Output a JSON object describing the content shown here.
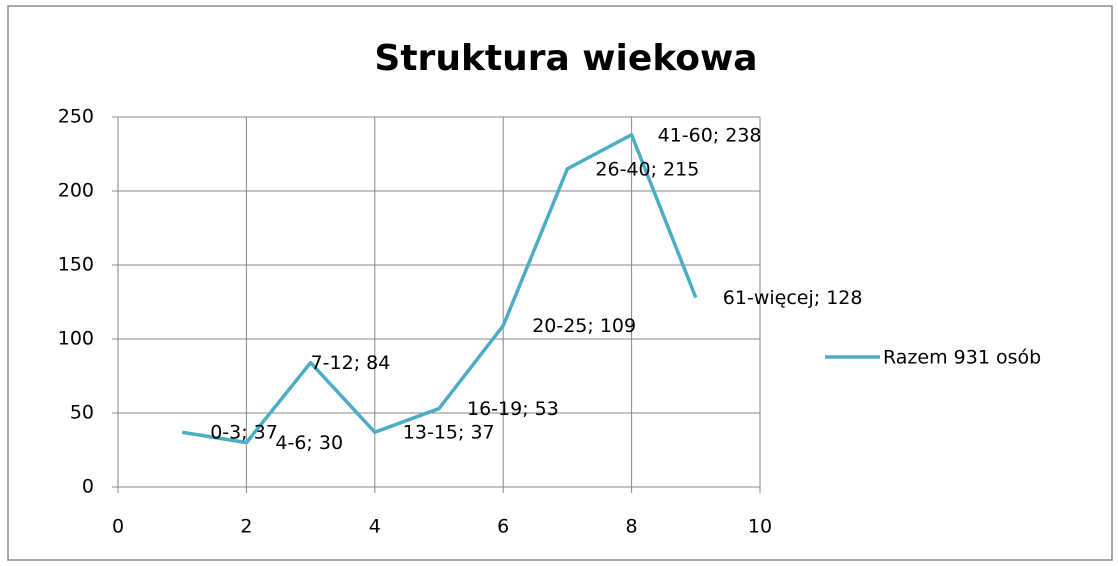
{
  "chart_data": {
    "type": "line",
    "title": "Struktura wiekowa",
    "x": [
      1,
      2,
      3,
      4,
      5,
      6,
      7,
      8,
      9
    ],
    "series": [
      {
        "name": "Razem 931 osób",
        "color": "#4bacc6",
        "values": [
          37,
          30,
          84,
          37,
          53,
          109,
          215,
          238,
          128
        ],
        "value_labels": [
          "0-3; 37",
          "4-6; 30",
          "7-12; 84",
          "13-15; 37",
          "16-19; 53",
          "20-25; 109",
          "26-40; 215",
          "41-60; 238",
          "61-więcej; 128"
        ]
      }
    ],
    "xlim": [
      0,
      10
    ],
    "xticks": [
      0,
      2,
      4,
      6,
      8,
      10
    ],
    "ylim": [
      0,
      250
    ],
    "yticks": [
      0,
      50,
      100,
      150,
      200,
      250
    ],
    "grid": true,
    "legend": "right"
  }
}
